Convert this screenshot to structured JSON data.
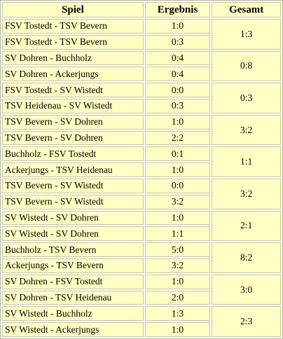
{
  "header": {
    "spiel": "Spiel",
    "ergebnis": "Ergebnis",
    "gesamt": "Gesamt"
  },
  "pairs": [
    {
      "total": "1:3",
      "games": [
        {
          "match": "FSV Tostedt - TSV Bevern",
          "result": "1:0"
        },
        {
          "match": "FSV Tostedt - TSV Bevern",
          "result": "0:3"
        }
      ]
    },
    {
      "total": "0:8",
      "games": [
        {
          "match": "SV Dohren - Buchholz",
          "result": "0:4"
        },
        {
          "match": "SV Dohren - Ackerjungs",
          "result": "0:4"
        }
      ]
    },
    {
      "total": "0:3",
      "games": [
        {
          "match": "FSV Tostedt - SV Wistedt",
          "result": "0:0"
        },
        {
          "match": "TSV Heidenau - SV Wistedt",
          "result": "0:3"
        }
      ]
    },
    {
      "total": "3:2",
      "games": [
        {
          "match": "TSV Bevern - SV Dohren",
          "result": "1:0"
        },
        {
          "match": "TSV Bevern - SV Dohren",
          "result": "2:2"
        }
      ]
    },
    {
      "total": "1:1",
      "games": [
        {
          "match": "Buchholz - FSV Tostedt",
          "result": "0:1"
        },
        {
          "match": "Ackerjungs - TSV Heidenau",
          "result": "1:0"
        }
      ]
    },
    {
      "total": "3:2",
      "games": [
        {
          "match": "TSV Bevern - SV Wistedt",
          "result": "0:0"
        },
        {
          "match": "TSV Bevern - SV Wistedt",
          "result": "3:2"
        }
      ]
    },
    {
      "total": "2:1",
      "games": [
        {
          "match": "SV Wistedt - SV Dohren",
          "result": "1:0"
        },
        {
          "match": "SV Wistedt - SV Dohren",
          "result": "1:1"
        }
      ]
    },
    {
      "total": "8:2",
      "games": [
        {
          "match": "Buchholz - TSV Bevern",
          "result": "5:0"
        },
        {
          "match": "Ackerjungs - TSV Bevern",
          "result": "3:2"
        }
      ]
    },
    {
      "total": "3:0",
      "games": [
        {
          "match": "SV Dohren - FSV Tostedt",
          "result": "1:0"
        },
        {
          "match": "SV Dohren - TSV Heidenau",
          "result": "2:0"
        }
      ]
    },
    {
      "total": "2:3",
      "games": [
        {
          "match": "SV Wistedt - Buchholz",
          "result": "1:3"
        },
        {
          "match": "SV Wistedt - Ackerjungs",
          "result": "1:0"
        }
      ]
    }
  ]
}
